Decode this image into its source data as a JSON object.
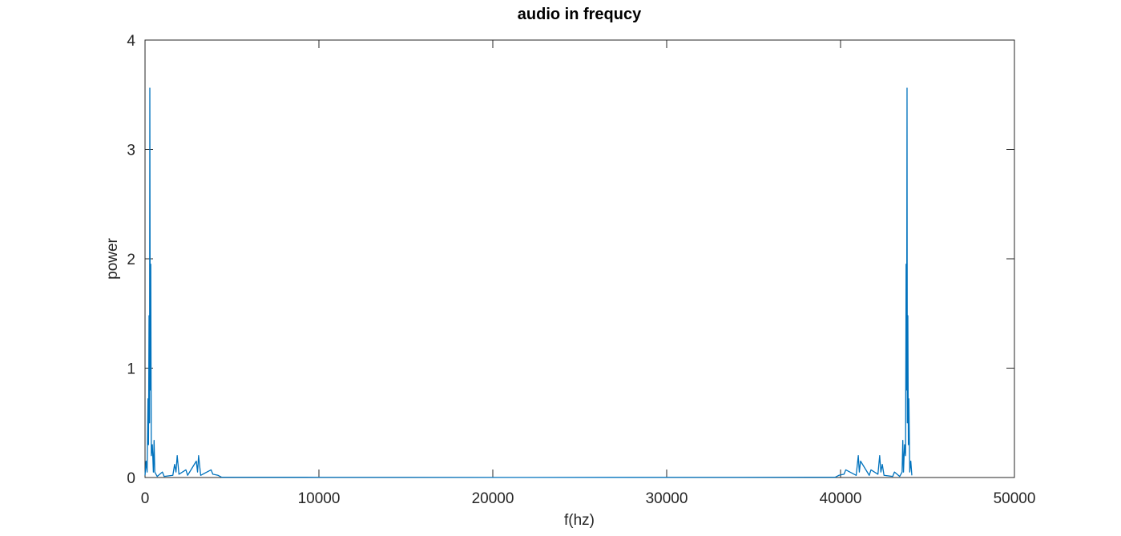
{
  "chart_data": {
    "type": "line",
    "title": "audio in frequcy",
    "x_label": "f(hz)",
    "y_label": "power",
    "xlim": [
      0,
      50000
    ],
    "ylim": [
      0,
      4
    ],
    "xticks": [
      0,
      10000,
      20000,
      30000,
      40000,
      50000
    ],
    "yticks": [
      0,
      1,
      2,
      3,
      4
    ],
    "grid": false,
    "series": [
      {
        "color": "#0072bd",
        "x": [
          0,
          60,
          120,
          170,
          200,
          230,
          260,
          276,
          300,
          330,
          360,
          420,
          480,
          520,
          560,
          700,
          1000,
          1100,
          1600,
          1700,
          1780,
          1850,
          1950,
          2350,
          2450,
          2950,
          3020,
          3080,
          3200,
          3800,
          3900,
          4200,
          4400,
          10000,
          22050,
          34100,
          39700,
          39900,
          40200,
          40300,
          40900,
          41020,
          41080,
          41150,
          41650,
          41750,
          42150,
          42250,
          42320,
          42400,
          42500,
          43000,
          43100,
          43400,
          43540,
          43580,
          43620,
          43680,
          43740,
          43770,
          43800,
          43824,
          43840,
          43870,
          43900,
          43930,
          43980,
          44040,
          44100
        ],
        "values": [
          0.02,
          0.15,
          0.05,
          0.72,
          0.3,
          1.48,
          0.5,
          3.56,
          0.8,
          1.95,
          0.2,
          0.3,
          0.05,
          0.34,
          0.05,
          0.01,
          0.05,
          0.01,
          0.02,
          0.12,
          0.05,
          0.2,
          0.03,
          0.07,
          0.02,
          0.15,
          0.05,
          0.2,
          0.02,
          0.07,
          0.03,
          0.02,
          0.003,
          0.002,
          0.001,
          0.002,
          0.003,
          0.02,
          0.03,
          0.07,
          0.02,
          0.2,
          0.05,
          0.15,
          0.02,
          0.07,
          0.03,
          0.2,
          0.05,
          0.12,
          0.02,
          0.01,
          0.05,
          0.01,
          0.05,
          0.34,
          0.05,
          0.3,
          0.2,
          1.95,
          0.8,
          3.56,
          0.5,
          1.48,
          0.3,
          0.72,
          0.05,
          0.15,
          0.02
        ]
      }
    ]
  }
}
